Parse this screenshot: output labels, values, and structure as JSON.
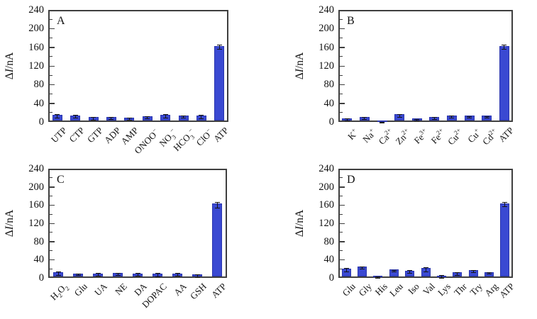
{
  "figure": {
    "ylabel": "ΔI/nA",
    "background_color": "#ffffff",
    "bar_color": "#3a49d2",
    "bar_border_color": "#2a35ad",
    "error_bar_color": "#151515",
    "axis_color": "#3f3f3f"
  },
  "chart_data": [
    {
      "type": "bar",
      "panel_label": "A",
      "ylabel": "ΔI/nA",
      "ylim": [
        0,
        240
      ],
      "ytick_step": 40,
      "minor_tick_step": 20,
      "grid": false,
      "legend": "none",
      "categories": [
        "UTP",
        "CTP",
        "GTP",
        "ADP",
        "AMP",
        "ONOO^-",
        "NO_3^-",
        "HCO_3^-",
        "ClO^-",
        "ATP"
      ],
      "values": [
        12,
        11,
        7,
        8,
        6,
        9,
        12,
        11,
        11,
        160
      ],
      "errors": [
        4,
        3,
        3,
        2,
        2,
        2,
        4,
        2,
        4,
        5
      ]
    },
    {
      "type": "bar",
      "panel_label": "B",
      "ylabel": "ΔI/nA",
      "ylim": [
        0,
        240
      ],
      "ytick_step": 40,
      "minor_tick_step": 20,
      "grid": false,
      "legend": "none",
      "categories": [
        "K^+",
        "Na^+",
        "Ca^2+",
        "Zn^2+",
        "Fe^3+",
        "Fe^2+",
        "Cu^2+",
        "Cu^+",
        "Cd^2+",
        "ATP"
      ],
      "values": [
        5,
        8,
        -2,
        13,
        4,
        8,
        11,
        10,
        10,
        160
      ],
      "errors": [
        2,
        2,
        1,
        3,
        2,
        2,
        2,
        2,
        2,
        5
      ]
    },
    {
      "type": "bar",
      "panel_label": "C",
      "ylabel": "ΔI/nA",
      "ylim": [
        0,
        240
      ],
      "ytick_step": 40,
      "minor_tick_step": 20,
      "grid": false,
      "legend": "none",
      "categories": [
        "H_2O_2",
        "Glu",
        "UA",
        "NE",
        "DA",
        "DOPAC",
        "AA",
        "GSH",
        "ATP"
      ],
      "values": [
        10,
        7,
        7,
        8,
        7,
        6,
        7,
        4,
        160
      ],
      "errors": [
        4,
        2,
        3,
        2,
        3,
        4,
        3,
        3,
        6
      ]
    },
    {
      "type": "bar",
      "panel_label": "D",
      "ylabel": "ΔI/nA",
      "ylim": [
        0,
        240
      ],
      "ytick_step": 40,
      "minor_tick_step": 20,
      "grid": false,
      "legend": "none",
      "categories": [
        "Glu",
        "Gly",
        "His",
        "Leu",
        "Iso",
        "Val",
        "Lys",
        "Thr",
        "Try",
        "Arg",
        "ATP"
      ],
      "values": [
        17,
        22,
        1,
        15,
        13,
        18,
        2,
        9,
        14,
        10,
        161
      ],
      "errors": [
        4,
        2,
        1,
        2,
        3,
        4,
        4,
        3,
        2,
        2,
        5
      ]
    }
  ]
}
